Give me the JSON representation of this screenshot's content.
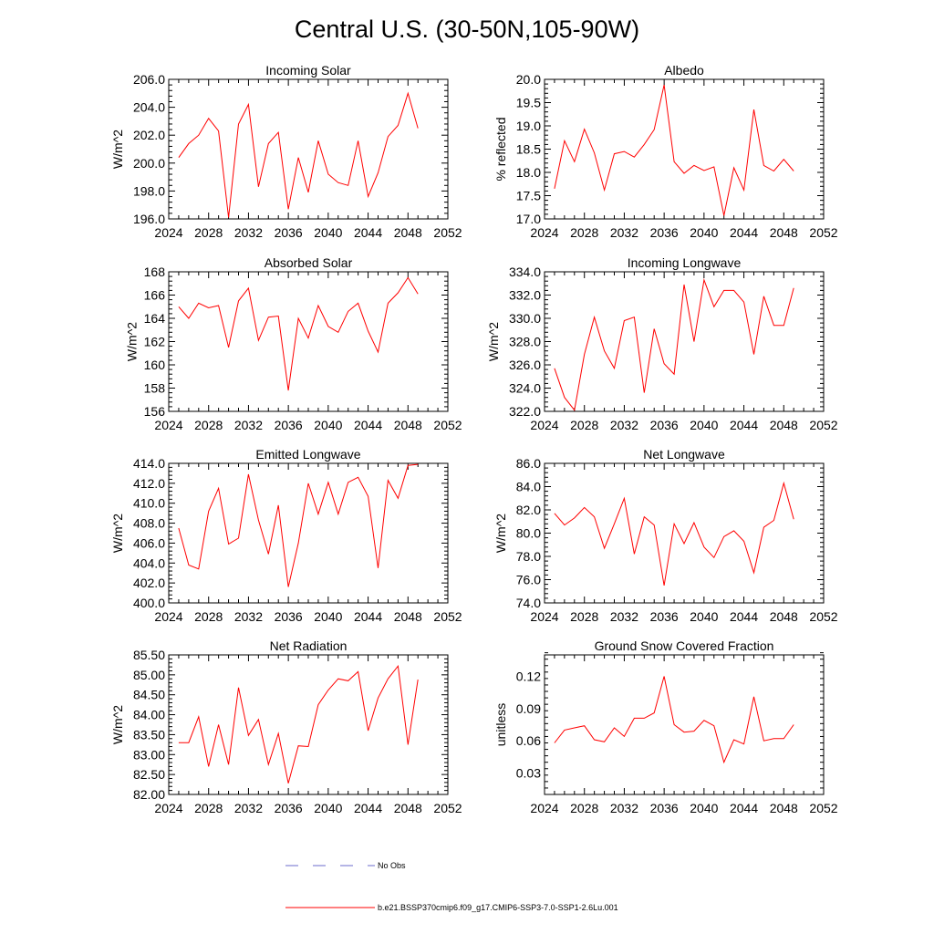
{
  "title": "Central U.S. (30-50N,105-90W)",
  "colors": {
    "series": "#ff0000",
    "obs": "#6b6bcc",
    "axis": "#000000"
  },
  "legend": {
    "obs_label": "No Obs",
    "model_label": "b.e21.BSSP370cmip6.f09_g17.CMIP6-SSP3-7.0-SSP1-2.6Lu.001"
  },
  "chart_data": [
    {
      "type": "line",
      "title": "Incoming Solar",
      "ylabel": "W/m^2",
      "xlim": [
        2024,
        2052
      ],
      "xticks": [
        2024,
        2028,
        2032,
        2036,
        2040,
        2044,
        2048,
        2052
      ],
      "ylim": [
        196,
        206
      ],
      "yticks": [
        "196.0",
        "198.0",
        "200.0",
        "202.0",
        "204.0",
        "206.0"
      ],
      "x": [
        2025,
        2026,
        2027,
        2028,
        2029,
        2030,
        2031,
        2032,
        2033,
        2034,
        2035,
        2036,
        2037,
        2038,
        2039,
        2040,
        2041,
        2042,
        2043,
        2044,
        2045,
        2046,
        2047,
        2048,
        2049
      ],
      "y": [
        200.4,
        201.4,
        202.0,
        203.2,
        202.3,
        196.1,
        202.8,
        204.2,
        198.3,
        201.4,
        202.2,
        196.7,
        200.4,
        197.9,
        201.6,
        199.2,
        198.6,
        198.4,
        201.6,
        197.6,
        199.3,
        201.9,
        202.7,
        205.0,
        202.5
      ]
    },
    {
      "type": "line",
      "title": "Albedo",
      "ylabel": "% reflected",
      "xlim": [
        2024,
        2052
      ],
      "xticks": [
        2024,
        2028,
        2032,
        2036,
        2040,
        2044,
        2048,
        2052
      ],
      "ylim": [
        17.0,
        20.0
      ],
      "yticks": [
        "17.0",
        "17.5",
        "18.0",
        "18.5",
        "19.0",
        "19.5",
        "20.0"
      ],
      "x": [
        2025,
        2026,
        2027,
        2028,
        2029,
        2030,
        2031,
        2032,
        2033,
        2034,
        2035,
        2036,
        2037,
        2038,
        2039,
        2040,
        2041,
        2042,
        2043,
        2044,
        2045,
        2046,
        2047,
        2048,
        2049
      ],
      "y": [
        17.65,
        18.68,
        18.23,
        18.93,
        18.42,
        17.62,
        18.4,
        18.45,
        18.33,
        18.6,
        18.92,
        19.88,
        18.23,
        17.98,
        18.15,
        18.04,
        18.12,
        17.07,
        18.1,
        17.62,
        19.35,
        18.15,
        18.03,
        18.28,
        18.03
      ]
    },
    {
      "type": "line",
      "title": "Absorbed Solar",
      "ylabel": "W/m^2",
      "xlim": [
        2024,
        2052
      ],
      "xticks": [
        2024,
        2028,
        2032,
        2036,
        2040,
        2044,
        2048,
        2052
      ],
      "ylim": [
        156,
        168
      ],
      "yticks": [
        "156",
        "158",
        "160",
        "162",
        "164",
        "166",
        "168"
      ],
      "x": [
        2025,
        2026,
        2027,
        2028,
        2029,
        2030,
        2031,
        2032,
        2033,
        2034,
        2035,
        2036,
        2037,
        2038,
        2039,
        2040,
        2041,
        2042,
        2043,
        2044,
        2045,
        2046,
        2047,
        2048,
        2049
      ],
      "y": [
        165.0,
        164.0,
        165.3,
        164.9,
        165.1,
        161.5,
        165.5,
        166.6,
        162.1,
        164.1,
        164.2,
        157.8,
        164.0,
        162.3,
        165.1,
        163.3,
        162.8,
        164.6,
        165.3,
        162.9,
        161.1,
        165.3,
        166.2,
        167.5,
        166.1
      ]
    },
    {
      "type": "line",
      "title": "Incoming Longwave",
      "ylabel": "W/m^2",
      "xlim": [
        2024,
        2052
      ],
      "xticks": [
        2024,
        2028,
        2032,
        2036,
        2040,
        2044,
        2048,
        2052
      ],
      "ylim": [
        322,
        334
      ],
      "yticks": [
        "322.0",
        "324.0",
        "326.0",
        "328.0",
        "330.0",
        "332.0",
        "334.0"
      ],
      "x": [
        2025,
        2026,
        2027,
        2028,
        2029,
        2030,
        2031,
        2032,
        2033,
        2034,
        2035,
        2036,
        2037,
        2038,
        2039,
        2040,
        2041,
        2042,
        2043,
        2044,
        2045,
        2046,
        2047,
        2048,
        2049
      ],
      "y": [
        325.7,
        323.2,
        322.1,
        326.9,
        330.1,
        327.2,
        325.7,
        329.8,
        330.1,
        323.6,
        329.1,
        326.1,
        325.2,
        332.9,
        328.0,
        333.3,
        331.0,
        332.4,
        332.4,
        331.4,
        326.9,
        331.9,
        329.4,
        329.4,
        332.6
      ]
    },
    {
      "type": "line",
      "title": "Emitted Longwave",
      "ylabel": "W/m^2",
      "xlim": [
        2024,
        2052
      ],
      "xticks": [
        2024,
        2028,
        2032,
        2036,
        2040,
        2044,
        2048,
        2052
      ],
      "ylim": [
        400,
        414
      ],
      "yticks": [
        "400.0",
        "402.0",
        "404.0",
        "406.0",
        "408.0",
        "410.0",
        "412.0",
        "414.0"
      ],
      "x": [
        2025,
        2026,
        2027,
        2028,
        2029,
        2030,
        2031,
        2032,
        2033,
        2034,
        2035,
        2036,
        2037,
        2038,
        2039,
        2040,
        2041,
        2042,
        2043,
        2044,
        2045,
        2046,
        2047,
        2048,
        2049
      ],
      "y": [
        407.5,
        403.8,
        403.4,
        409.2,
        411.5,
        405.9,
        406.5,
        412.9,
        408.3,
        404.9,
        409.8,
        401.6,
        406.0,
        412.0,
        408.9,
        412.1,
        408.9,
        412.1,
        412.6,
        410.7,
        403.5,
        412.3,
        410.5,
        413.8,
        413.9
      ]
    },
    {
      "type": "line",
      "title": "Net Longwave",
      "ylabel": "W/m^2",
      "xlim": [
        2024,
        2052
      ],
      "xticks": [
        2024,
        2028,
        2032,
        2036,
        2040,
        2044,
        2048,
        2052
      ],
      "ylim": [
        74,
        86
      ],
      "yticks": [
        "74.0",
        "76.0",
        "78.0",
        "80.0",
        "82.0",
        "84.0",
        "86.0"
      ],
      "x": [
        2025,
        2026,
        2027,
        2028,
        2029,
        2030,
        2031,
        2032,
        2033,
        2034,
        2035,
        2036,
        2037,
        2038,
        2039,
        2040,
        2041,
        2042,
        2043,
        2044,
        2045,
        2046,
        2047,
        2048,
        2049
      ],
      "y": [
        81.7,
        80.7,
        81.3,
        82.2,
        81.4,
        78.7,
        80.8,
        83.0,
        78.2,
        81.4,
        80.7,
        75.5,
        80.8,
        79.1,
        80.9,
        78.8,
        77.9,
        79.7,
        80.2,
        79.3,
        76.6,
        80.5,
        81.1,
        84.3,
        81.2
      ]
    },
    {
      "type": "line",
      "title": "Net Radiation",
      "ylabel": "W/m^2",
      "xlim": [
        2024,
        2052
      ],
      "xticks": [
        2024,
        2028,
        2032,
        2036,
        2040,
        2044,
        2048,
        2052
      ],
      "ylim": [
        82.0,
        85.5
      ],
      "yticks": [
        "82.00",
        "82.50",
        "83.00",
        "83.50",
        "84.00",
        "84.50",
        "85.00",
        "85.50"
      ],
      "x": [
        2025,
        2026,
        2027,
        2028,
        2029,
        2030,
        2031,
        2032,
        2033,
        2034,
        2035,
        2036,
        2037,
        2038,
        2039,
        2040,
        2041,
        2042,
        2043,
        2044,
        2045,
        2046,
        2047,
        2048,
        2049
      ],
      "y": [
        83.3,
        83.3,
        83.95,
        82.7,
        83.75,
        82.75,
        84.68,
        83.48,
        83.88,
        82.75,
        83.53,
        82.28,
        83.22,
        83.2,
        84.25,
        84.62,
        84.9,
        84.85,
        85.08,
        83.6,
        84.42,
        84.9,
        85.22,
        83.25,
        84.88
      ]
    },
    {
      "type": "line",
      "title": "Ground Snow Covered Fraction",
      "ylabel": "unitless",
      "xlim": [
        2024,
        2052
      ],
      "xticks": [
        2024,
        2028,
        2032,
        2036,
        2040,
        2044,
        2048,
        2052
      ],
      "ylim": [
        0.01,
        0.14
      ],
      "yticks": [
        "0.03",
        "0.06",
        "0.09",
        "0.12"
      ],
      "x": [
        2025,
        2026,
        2027,
        2028,
        2029,
        2030,
        2031,
        2032,
        2033,
        2034,
        2035,
        2036,
        2037,
        2038,
        2039,
        2040,
        2041,
        2042,
        2043,
        2044,
        2045,
        2046,
        2047,
        2048,
        2049
      ],
      "y": [
        0.058,
        0.07,
        0.072,
        0.074,
        0.061,
        0.059,
        0.072,
        0.064,
        0.081,
        0.081,
        0.086,
        0.12,
        0.075,
        0.068,
        0.069,
        0.079,
        0.074,
        0.04,
        0.061,
        0.057,
        0.101,
        0.06,
        0.062,
        0.062,
        0.075
      ]
    }
  ]
}
